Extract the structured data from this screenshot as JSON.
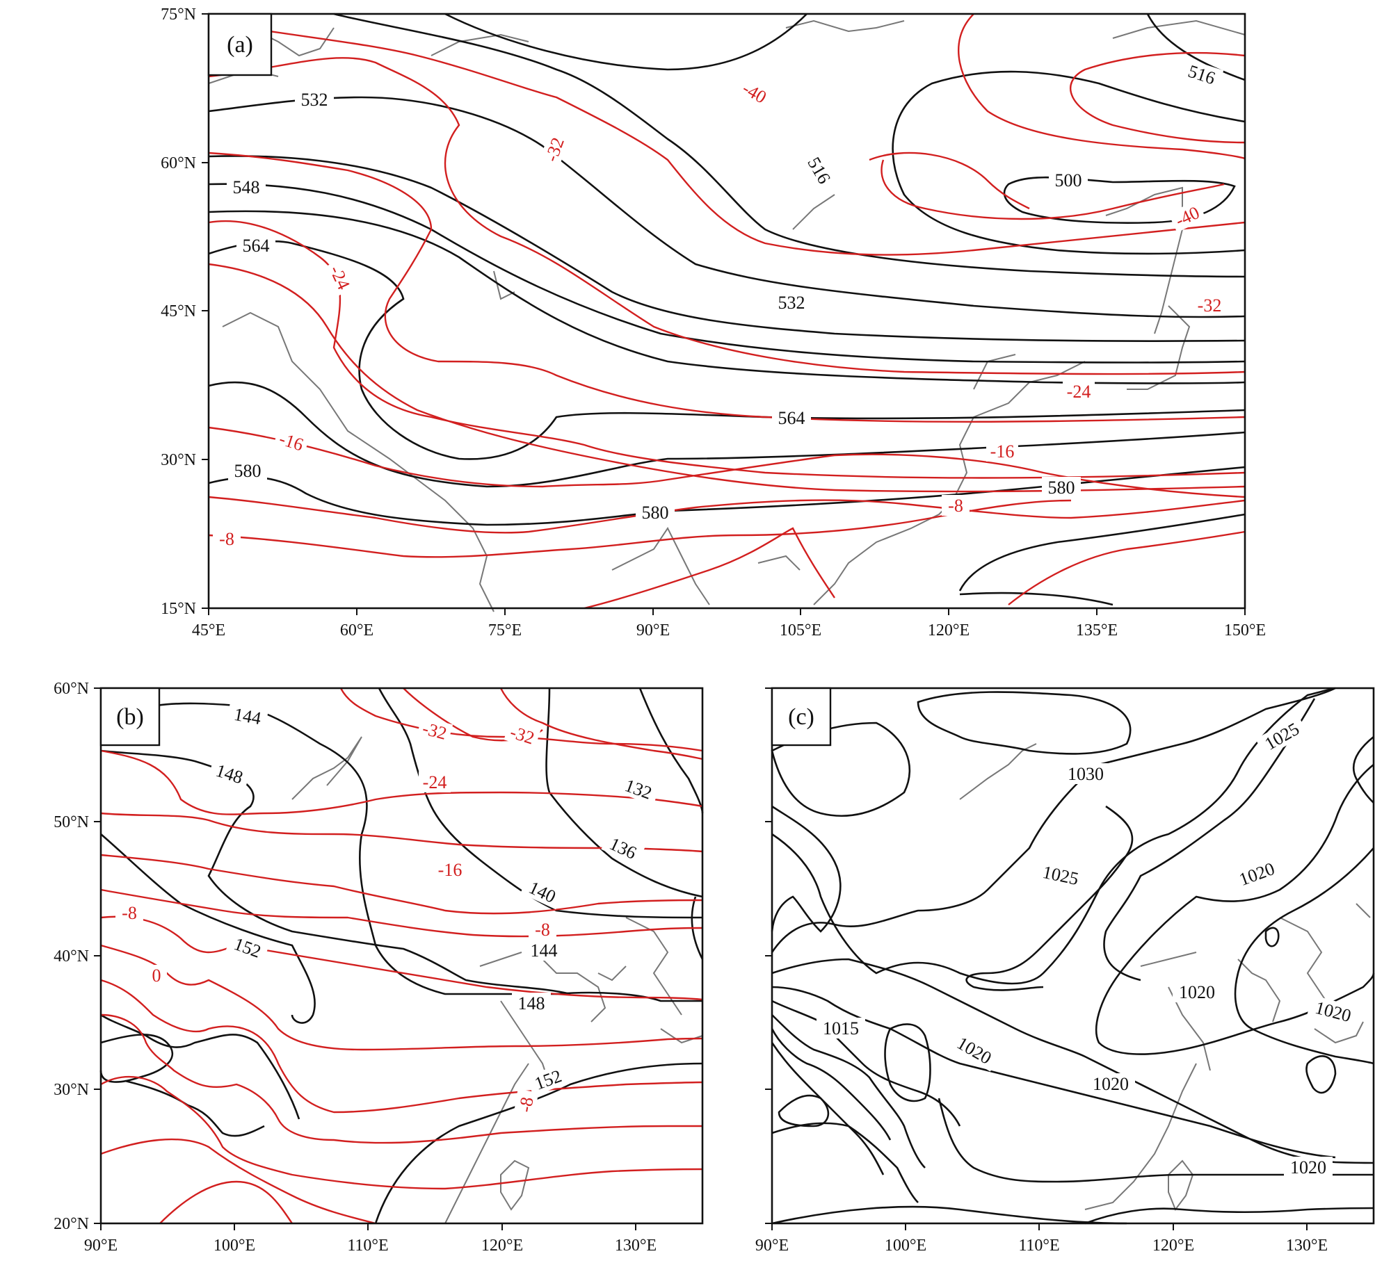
{
  "colors": {
    "height_contour": "#111111",
    "temperature_contour": "#d21f1f",
    "coastline": "#777777"
  },
  "panels": [
    {
      "label": "(a)",
      "x_ticks": [
        "45°E",
        "60°E",
        "75°E",
        "90°E",
        "105°E",
        "120°E",
        "135°E",
        "150°E"
      ],
      "y_ticks": [
        "75°N",
        "60°N",
        "45°N",
        "30°N",
        "15°N"
      ],
      "black_contour_labels": [
        "532",
        "548",
        "564",
        "516",
        "500",
        "532",
        "564",
        "580",
        "580",
        "580",
        "516"
      ],
      "red_contour_labels": [
        "-40",
        "-32",
        "-24",
        "-16",
        "-8",
        "-40",
        "-32",
        "-24",
        "-16",
        "-8"
      ]
    },
    {
      "label": "(b)",
      "x_ticks": [
        "90°E",
        "100°E",
        "110°E",
        "120°E",
        "130°E"
      ],
      "y_ticks": [
        "60°N",
        "50°N",
        "40°N",
        "30°N",
        "20°N"
      ],
      "black_contour_labels": [
        "144",
        "148",
        "132",
        "136",
        "140",
        "152",
        "144",
        "148",
        "152"
      ],
      "red_contour_labels": [
        "-32",
        "-32",
        "-24",
        "-16",
        "-8",
        "-8",
        "0",
        "-8"
      ]
    },
    {
      "label": "(c)",
      "x_ticks": [
        "90°E",
        "100°E",
        "110°E",
        "120°E",
        "130°E"
      ],
      "black_contour_labels": [
        "1030",
        "1025",
        "1025",
        "1020",
        "1015",
        "1020",
        "1020",
        "1020",
        "1020",
        "1020"
      ]
    }
  ]
}
